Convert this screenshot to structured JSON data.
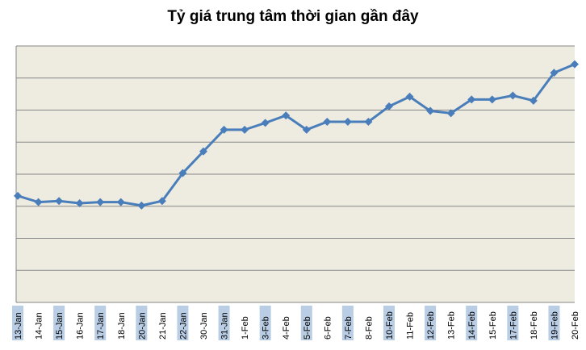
{
  "chart_data": {
    "type": "line",
    "title": "Tỷ giá trung tâm thời gian gần đây",
    "xlabel": "",
    "ylabel": "",
    "categories": [
      "13-Jan",
      "14-Jan",
      "15-Jan",
      "16-Jan",
      "17-Jan",
      "18-Jan",
      "20-Jan",
      "21-Jan",
      "22-Jan",
      "30-Jan",
      "31-Jan",
      "1-Feb",
      "3-Feb",
      "4-Feb",
      "5-Feb",
      "6-Feb",
      "7-Feb",
      "8-Feb",
      "10-Feb",
      "11-Feb",
      "12-Feb",
      "13-Feb",
      "14-Feb",
      "15-Feb",
      "17-Feb",
      "18-Feb",
      "19-Feb",
      "20-Feb"
    ],
    "series": [
      {
        "values": [
          3.74,
          3.52,
          3.56,
          3.48,
          3.52,
          3.52,
          3.4,
          3.56,
          4.54,
          5.3,
          6.06,
          6.06,
          6.3,
          6.56,
          6.06,
          6.34,
          6.34,
          6.34,
          6.88,
          7.22,
          6.72,
          6.64,
          7.12,
          7.12,
          7.26,
          7.08,
          8.06,
          8.36
        ]
      }
    ],
    "ylim": [
      0,
      9
    ],
    "y_ticks_shown": false,
    "grid": true,
    "legend": "none",
    "colors": {
      "line": "#4a7ebb",
      "plot_background": "#eeece1",
      "gridline": "#868686",
      "tick_label_highlight": "#b9cde5",
      "tick_label_plain": "#ffffff"
    }
  }
}
